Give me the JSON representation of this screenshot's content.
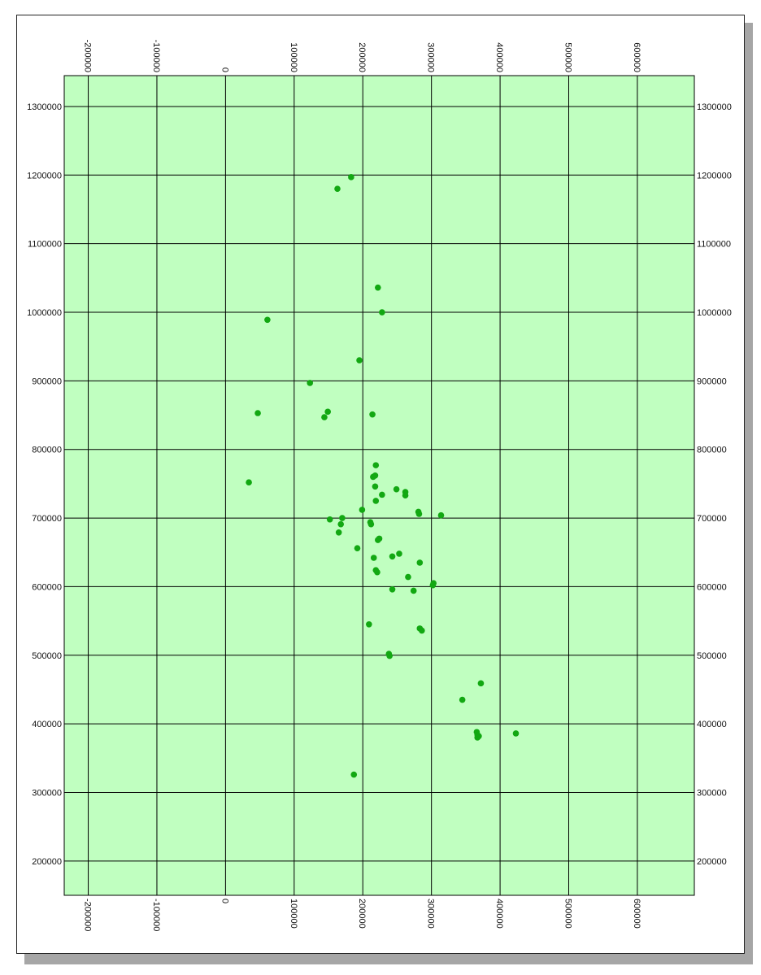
{
  "chart_data": {
    "type": "scatter",
    "title": "",
    "xlabel": "",
    "ylabel": "",
    "xlim": [
      -235000,
      683000
    ],
    "ylim": [
      150000,
      1345000
    ],
    "grid": true,
    "x_ticks": [
      -200000,
      -100000,
      0,
      100000,
      200000,
      300000,
      400000,
      500000,
      600000
    ],
    "x_tick_labels": [
      "-200000",
      "-100000",
      "0",
      "100000",
      "200000",
      "300000",
      "400000",
      "500000",
      "600000"
    ],
    "y_ticks": [
      200000,
      300000,
      400000,
      500000,
      600000,
      700000,
      800000,
      900000,
      1000000,
      1100000,
      1200000,
      1300000
    ],
    "y_tick_labels": [
      "200000",
      "300000",
      "400000",
      "500000",
      "600000",
      "700000",
      "800000",
      "900000",
      "1000000",
      "1100000",
      "1200000",
      "1300000"
    ],
    "colors": {
      "background": "#c0ffc0",
      "points": "#12a812",
      "grid": "#000000"
    },
    "series": [
      {
        "points": [
          [
            183000,
            1197000
          ],
          [
            163000,
            1180000
          ],
          [
            222000,
            1036000
          ],
          [
            228000,
            1000000
          ],
          [
            61000,
            989000
          ],
          [
            195000,
            930000
          ],
          [
            123000,
            897000
          ],
          [
            47000,
            853000
          ],
          [
            149000,
            855000
          ],
          [
            144000,
            847000
          ],
          [
            214000,
            851000
          ],
          [
            219000,
            777000
          ],
          [
            218000,
            762000
          ],
          [
            215000,
            760000
          ],
          [
            34000,
            752000
          ],
          [
            218000,
            746000
          ],
          [
            249000,
            742000
          ],
          [
            262000,
            738000
          ],
          [
            262000,
            733000
          ],
          [
            228000,
            734000
          ],
          [
            219000,
            725000
          ],
          [
            199000,
            712000
          ],
          [
            281000,
            709000
          ],
          [
            282000,
            706000
          ],
          [
            314000,
            704000
          ],
          [
            170000,
            700000
          ],
          [
            152000,
            698000
          ],
          [
            211000,
            694000
          ],
          [
            212000,
            691000
          ],
          [
            168000,
            691000
          ],
          [
            224000,
            670000
          ],
          [
            222000,
            668000
          ],
          [
            165000,
            679000
          ],
          [
            192000,
            656000
          ],
          [
            253000,
            648000
          ],
          [
            243000,
            644000
          ],
          [
            216000,
            642000
          ],
          [
            283000,
            635000
          ],
          [
            219000,
            624000
          ],
          [
            221000,
            621000
          ],
          [
            266000,
            614000
          ],
          [
            303000,
            605000
          ],
          [
            302000,
            602000
          ],
          [
            274000,
            594000
          ],
          [
            243000,
            596000
          ],
          [
            209000,
            545000
          ],
          [
            283000,
            539000
          ],
          [
            286000,
            536000
          ],
          [
            238000,
            502000
          ],
          [
            239000,
            499000
          ],
          [
            372000,
            459000
          ],
          [
            345000,
            435000
          ],
          [
            366000,
            388000
          ],
          [
            367000,
            384000
          ],
          [
            369000,
            382000
          ],
          [
            367000,
            380000
          ],
          [
            423000,
            386000
          ],
          [
            187000,
            326000
          ]
        ]
      }
    ]
  }
}
